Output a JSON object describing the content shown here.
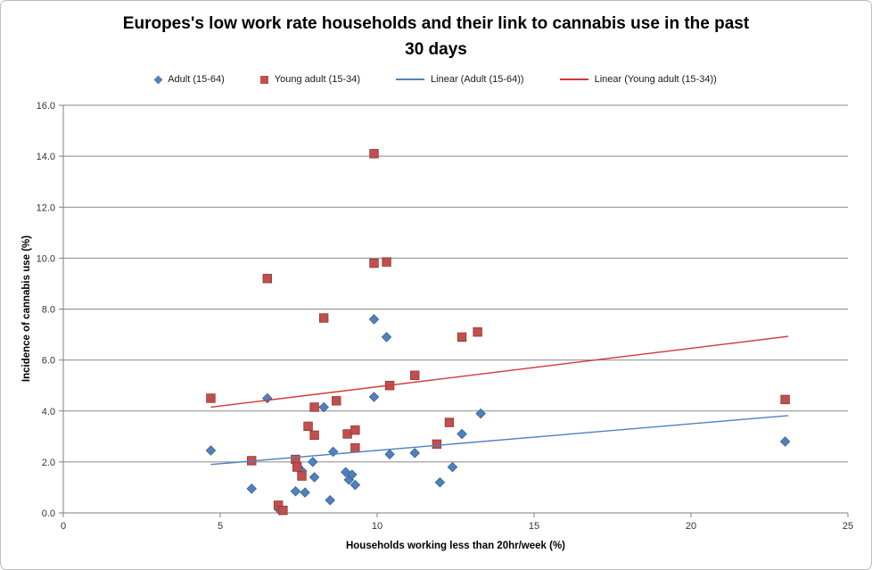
{
  "chart_data": {
    "type": "scatter",
    "title": "Europes's low work rate households and their link to cannabis use in the past\n30 days",
    "xlabel": "Households working less than 20hr/week (%)",
    "ylabel": "Incidence of cannabis  use (%)",
    "xlim": [
      0,
      25
    ],
    "ylim": [
      0,
      16
    ],
    "x_ticks": [
      "0",
      "5",
      "10",
      "15",
      "20",
      "25"
    ],
    "y_ticks": [
      "0.0",
      "2.0",
      "4.0",
      "6.0",
      "8.0",
      "10.0",
      "12.0",
      "14.0",
      "16.0"
    ],
    "grid": "horizontal-only",
    "legend_position": "top-center",
    "axis_color": "#7f7f7f",
    "gridline_color": "#898989",
    "tick_label_color": "#333333",
    "series": [
      {
        "name": "Adult (15-64)",
        "marker": "diamond",
        "color": "#4F81BD",
        "points": [
          [
            4.7,
            2.45
          ],
          [
            6.0,
            0.95
          ],
          [
            6.5,
            4.5
          ],
          [
            6.9,
            0.1
          ],
          [
            7.4,
            0.85
          ],
          [
            7.6,
            1.65
          ],
          [
            7.7,
            0.8
          ],
          [
            7.95,
            2.0
          ],
          [
            8.0,
            1.4
          ],
          [
            8.3,
            4.15
          ],
          [
            8.5,
            0.5
          ],
          [
            8.6,
            2.4
          ],
          [
            9.0,
            1.6
          ],
          [
            9.1,
            1.3
          ],
          [
            9.2,
            1.5
          ],
          [
            9.3,
            1.1
          ],
          [
            9.9,
            4.55
          ],
          [
            9.9,
            7.6
          ],
          [
            10.3,
            6.9
          ],
          [
            10.4,
            2.3
          ],
          [
            11.2,
            2.35
          ],
          [
            12.0,
            1.2
          ],
          [
            12.4,
            1.8
          ],
          [
            12.7,
            3.1
          ],
          [
            13.3,
            3.9
          ],
          [
            23.0,
            2.8
          ]
        ]
      },
      {
        "name": "Young adult (15-34)",
        "marker": "square",
        "color": "#C0504D",
        "points": [
          [
            4.7,
            4.5
          ],
          [
            6.0,
            2.05
          ],
          [
            6.5,
            9.2
          ],
          [
            6.85,
            0.3
          ],
          [
            7.0,
            0.1
          ],
          [
            7.4,
            2.1
          ],
          [
            7.45,
            1.8
          ],
          [
            7.6,
            1.45
          ],
          [
            7.8,
            3.4
          ],
          [
            8.0,
            3.05
          ],
          [
            8.0,
            4.15
          ],
          [
            8.3,
            7.65
          ],
          [
            8.7,
            4.4
          ],
          [
            9.05,
            3.1
          ],
          [
            9.3,
            3.25
          ],
          [
            9.3,
            2.55
          ],
          [
            9.9,
            14.1
          ],
          [
            9.9,
            9.8
          ],
          [
            10.3,
            9.85
          ],
          [
            10.4,
            5.0
          ],
          [
            11.2,
            5.4
          ],
          [
            11.9,
            2.7
          ],
          [
            12.3,
            3.55
          ],
          [
            12.7,
            6.9
          ],
          [
            13.2,
            7.1
          ],
          [
            23.0,
            4.45
          ]
        ]
      }
    ],
    "trendlines": [
      {
        "name": "Linear (Adult (15-64))",
        "color": "#4F81BD",
        "x1": 4.7,
        "y1": 1.9,
        "x2": 23.1,
        "y2": 3.82
      },
      {
        "name": "Linear (Young adult (15-34))",
        "color": "#D43535",
        "x1": 4.7,
        "y1": 4.15,
        "x2": 23.1,
        "y2": 6.93
      }
    ]
  }
}
